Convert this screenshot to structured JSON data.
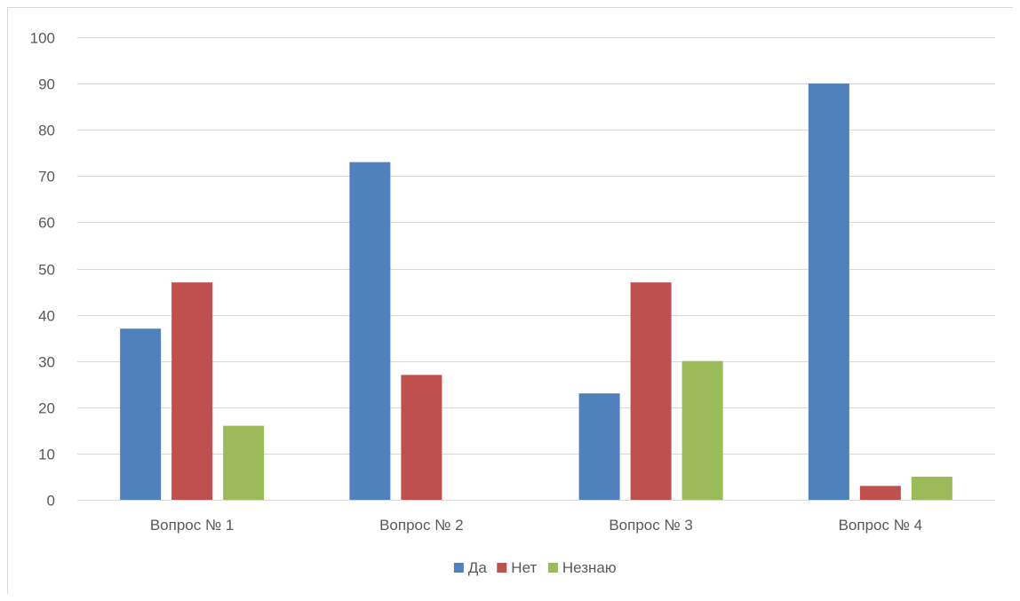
{
  "chart_data": {
    "type": "bar",
    "categories": [
      "Вопрос № 1",
      "Вопрос № 2",
      "Вопрос № 3",
      "Вопрос № 4"
    ],
    "series": [
      {
        "name": "Да",
        "color": "#4f81bd",
        "values": [
          37,
          73,
          23,
          90
        ]
      },
      {
        "name": "Нет",
        "color": "#c0504d",
        "values": [
          47,
          27,
          47,
          3
        ]
      },
      {
        "name": "Незнаю",
        "color": "#9bbb59",
        "values": [
          16,
          0,
          30,
          5
        ]
      }
    ],
    "ylim": [
      0,
      100
    ],
    "yticks": [
      0,
      10,
      20,
      30,
      40,
      50,
      60,
      70,
      80,
      90,
      100
    ],
    "grid": true,
    "legend": "bottom",
    "title": "",
    "xlabel": "",
    "ylabel": ""
  }
}
